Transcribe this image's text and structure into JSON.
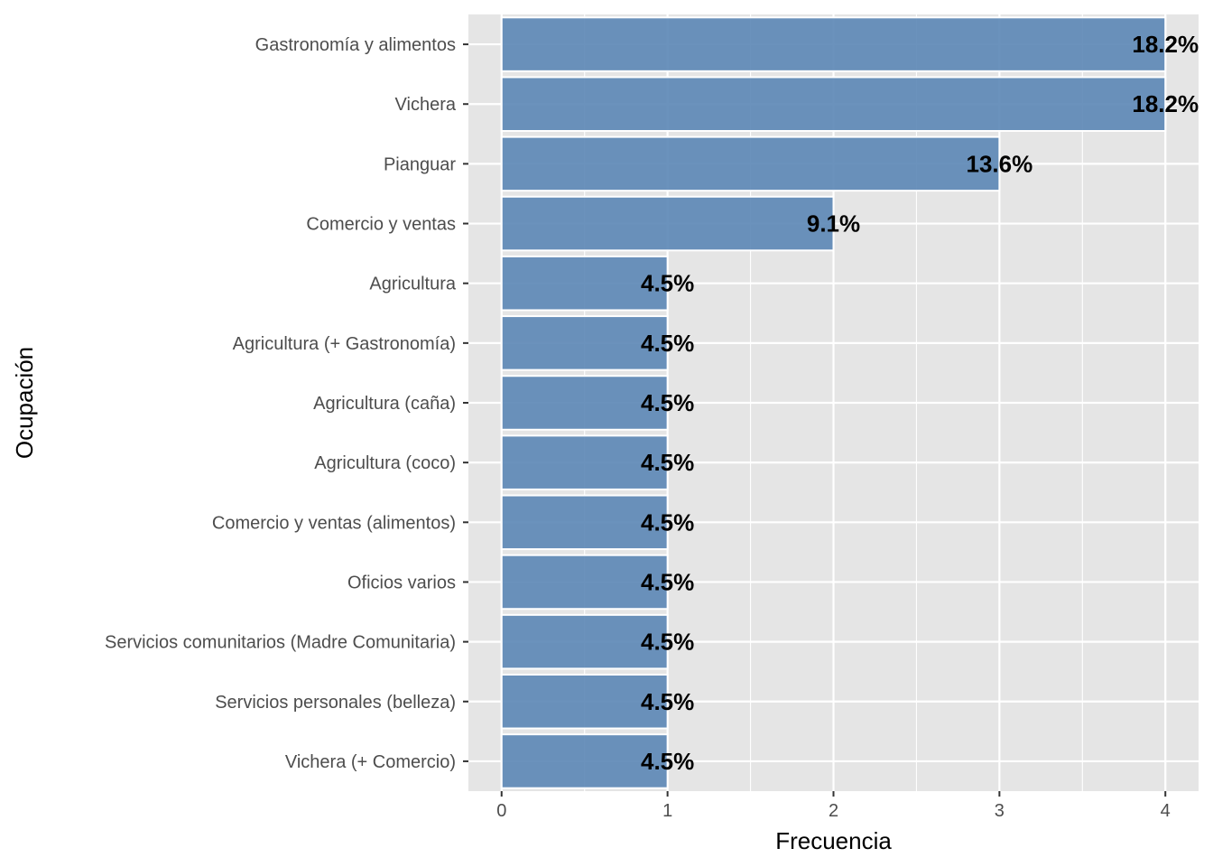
{
  "chart_data": {
    "type": "bar",
    "orientation": "horizontal",
    "categories": [
      "Gastronomía y alimentos",
      "Vichera",
      "Pianguar",
      "Comercio y ventas",
      "Agricultura",
      "Agricultura (+ Gastronomía)",
      "Agricultura (caña)",
      "Agricultura (coco)",
      "Comercio y ventas (alimentos)",
      "Oficios varios",
      "Servicios comunitarios (Madre Comunitaria)",
      "Servicios personales (belleza)",
      "Vichera (+ Comercio)"
    ],
    "values": [
      4,
      4,
      3,
      2,
      1,
      1,
      1,
      1,
      1,
      1,
      1,
      1,
      1
    ],
    "data_labels": [
      "18.2%",
      "18.2%",
      "13.6%",
      "9.1%",
      "4.5%",
      "4.5%",
      "4.5%",
      "4.5%",
      "4.5%",
      "4.5%",
      "4.5%",
      "4.5%",
      "4.5%"
    ],
    "xlabel": "Frecuencia",
    "ylabel": "Ocupación",
    "xlim": [
      -0.2,
      4.2
    ],
    "x_ticks": [
      0,
      1,
      2,
      3,
      4
    ],
    "grid": true,
    "colors": {
      "bar_fill": "#5b86b5",
      "bar_outline": "#ffffff",
      "panel_background": "#e5e5e5",
      "grid_line": "#ffffff"
    }
  }
}
